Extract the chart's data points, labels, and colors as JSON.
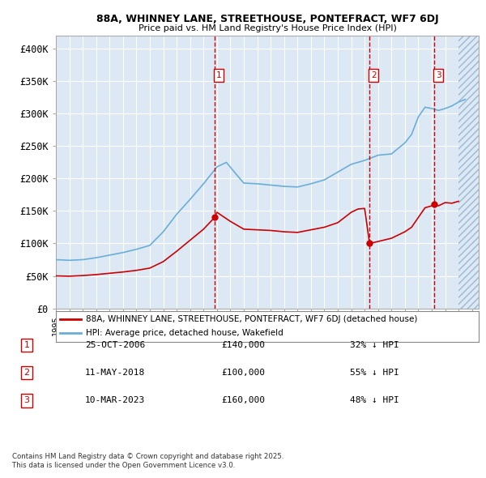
{
  "title1": "88A, WHINNEY LANE, STREETHOUSE, PONTEFRACT, WF7 6DJ",
  "title2": "Price paid vs. HM Land Registry's House Price Index (HPI)",
  "ylim": [
    0,
    420000
  ],
  "yticks": [
    0,
    50000,
    100000,
    150000,
    200000,
    250000,
    300000,
    350000,
    400000
  ],
  "ytick_labels": [
    "£0",
    "£50K",
    "£100K",
    "£150K",
    "£200K",
    "£250K",
    "£300K",
    "£350K",
    "£400K"
  ],
  "xlim_start": 1995.0,
  "xlim_end": 2026.5,
  "bg_color": "#dce9f5",
  "grid_color": "#ffffff",
  "line1_color": "#cc0000",
  "line2_color": "#6aaed6",
  "vline_color": "#cc0000",
  "transactions": [
    {
      "date": 2006.82,
      "price": 140000,
      "label": "1"
    },
    {
      "date": 2018.37,
      "price": 100000,
      "label": "2"
    },
    {
      "date": 2023.19,
      "price": 160000,
      "label": "3"
    }
  ],
  "hatch_start": 2025.0,
  "legend_label1": "88A, WHINNEY LANE, STREETHOUSE, PONTEFRACT, WF7 6DJ (detached house)",
  "legend_label2": "HPI: Average price, detached house, Wakefield",
  "footer1": "Contains HM Land Registry data © Crown copyright and database right 2025.",
  "footer2": "This data is licensed under the Open Government Licence v3.0.",
  "table_rows": [
    {
      "num": "1",
      "date": "25-OCT-2006",
      "price": "£140,000",
      "pct": "32% ↓ HPI"
    },
    {
      "num": "2",
      "date": "11-MAY-2018",
      "price": "£100,000",
      "pct": "55% ↓ HPI"
    },
    {
      "num": "3",
      "date": "10-MAR-2023",
      "price": "£160,000",
      "pct": "48% ↓ HPI"
    }
  ],
  "hpi_years": [
    1995,
    1996,
    1997,
    1998,
    1999,
    2000,
    2001,
    2002,
    2003,
    2004,
    2005,
    2006,
    2007,
    2007.7,
    2008.5,
    2009,
    2010,
    2011,
    2012,
    2013,
    2014,
    2015,
    2016,
    2017,
    2018,
    2018.5,
    2019,
    2020,
    2021,
    2021.5,
    2022,
    2022.5,
    2023,
    2023.5,
    2024,
    2024.5,
    2025,
    2025.5
  ],
  "hpi_values": [
    75000,
    74000,
    75000,
    78000,
    82000,
    86000,
    91000,
    97000,
    118000,
    145000,
    168000,
    192000,
    218000,
    225000,
    205000,
    193000,
    192000,
    190000,
    188000,
    187000,
    192000,
    198000,
    210000,
    222000,
    228000,
    232000,
    236000,
    238000,
    255000,
    268000,
    295000,
    310000,
    308000,
    305000,
    308000,
    312000,
    318000,
    322000
  ],
  "red_years": [
    1995,
    1996,
    1997,
    1998,
    1999,
    2000,
    2001,
    2002,
    2003,
    2004,
    2005,
    2006,
    2006.82,
    2006.82,
    2007,
    2008,
    2009,
    2010,
    2011,
    2012,
    2013,
    2014,
    2015,
    2016,
    2017,
    2017.5,
    2018.0,
    2018.37,
    2018.37,
    2019,
    2020,
    2021,
    2021.5,
    2022,
    2022.5,
    2023,
    2023.19,
    2023.19,
    2023.5,
    2024,
    2024.5,
    2025
  ],
  "red_values": [
    50000,
    49500,
    50500,
    52000,
    54000,
    56000,
    58500,
    62000,
    72000,
    88000,
    105000,
    122000,
    140000,
    140000,
    148000,
    134000,
    122000,
    121000,
    120000,
    118000,
    117000,
    121000,
    125000,
    132000,
    148000,
    153000,
    154000,
    100000,
    100000,
    103000,
    108000,
    118000,
    125000,
    140000,
    155000,
    158000,
    160000,
    160000,
    158000,
    163000,
    162000,
    165000
  ]
}
